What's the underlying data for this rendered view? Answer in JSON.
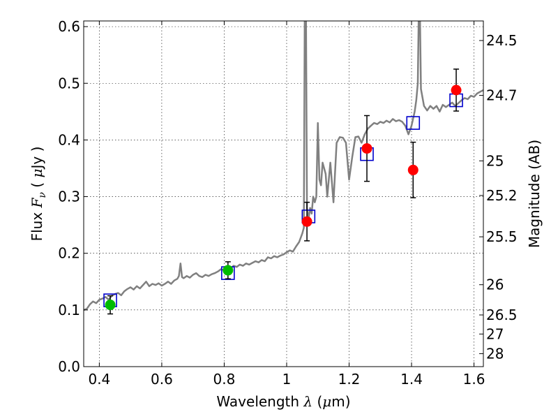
{
  "chart_data": {
    "type": "scatter",
    "xlabel": {
      "pre": "Wavelength  ",
      "sym": "λ",
      "post": " (",
      "mu": "μ",
      "unit": "m)"
    },
    "ylabel": {
      "pre": "Flux  ",
      "sym": "F",
      "sub": "ν",
      "post": "  ( ",
      "mu": "μ",
      "unit": "Jy )"
    },
    "y2label": "Magnitude (AB)",
    "xlim": [
      0.35,
      1.63
    ],
    "ylim": [
      0.0,
      0.61
    ],
    "grid": true,
    "x_ticks": [
      {
        "v": 0.4,
        "label": "0.4"
      },
      {
        "v": 0.6,
        "label": "0.6"
      },
      {
        "v": 0.8,
        "label": "0.8"
      },
      {
        "v": 1.0,
        "label": "1"
      },
      {
        "v": 1.2,
        "label": "1.2"
      },
      {
        "v": 1.4,
        "label": "1.4"
      },
      {
        "v": 1.6,
        "label": "1.6"
      }
    ],
    "y_ticks": [
      {
        "v": 0.0,
        "label": "0.0"
      },
      {
        "v": 0.1,
        "label": "0.1"
      },
      {
        "v": 0.2,
        "label": "0.2"
      },
      {
        "v": 0.3,
        "label": "0.3"
      },
      {
        "v": 0.4,
        "label": "0.4"
      },
      {
        "v": 0.5,
        "label": "0.5"
      },
      {
        "v": 0.6,
        "label": "0.6"
      }
    ],
    "mag_ticks": [
      {
        "mag": 24.5,
        "label": "24.5"
      },
      {
        "mag": 24.7,
        "label": "24.7"
      },
      {
        "mag": 25,
        "label": "25"
      },
      {
        "mag": 25.2,
        "label": "25.2"
      },
      {
        "mag": 25.5,
        "label": "25.5"
      },
      {
        "mag": 26,
        "label": "26"
      },
      {
        "mag": 26.5,
        "label": "26.5"
      },
      {
        "mag": 27,
        "label": "27"
      },
      {
        "mag": 28,
        "label": "28"
      }
    ],
    "series": [
      {
        "style": "line",
        "color": "#808080",
        "points": [
          [
            0.35,
            0.1
          ],
          [
            0.36,
            0.102
          ],
          [
            0.37,
            0.11
          ],
          [
            0.38,
            0.115
          ],
          [
            0.39,
            0.112
          ],
          [
            0.4,
            0.118
          ],
          [
            0.41,
            0.12
          ],
          [
            0.42,
            0.123
          ],
          [
            0.43,
            0.118
          ],
          [
            0.44,
            0.125
          ],
          [
            0.45,
            0.128
          ],
          [
            0.46,
            0.13
          ],
          [
            0.47,
            0.126
          ],
          [
            0.48,
            0.133
          ],
          [
            0.49,
            0.137
          ],
          [
            0.5,
            0.14
          ],
          [
            0.51,
            0.136
          ],
          [
            0.52,
            0.142
          ],
          [
            0.53,
            0.138
          ],
          [
            0.54,
            0.144
          ],
          [
            0.55,
            0.15
          ],
          [
            0.56,
            0.142
          ],
          [
            0.57,
            0.146
          ],
          [
            0.58,
            0.144
          ],
          [
            0.59,
            0.147
          ],
          [
            0.6,
            0.143
          ],
          [
            0.61,
            0.146
          ],
          [
            0.62,
            0.15
          ],
          [
            0.63,
            0.146
          ],
          [
            0.64,
            0.152
          ],
          [
            0.65,
            0.155
          ],
          [
            0.655,
            0.16
          ],
          [
            0.66,
            0.182
          ],
          [
            0.665,
            0.158
          ],
          [
            0.67,
            0.156
          ],
          [
            0.68,
            0.16
          ],
          [
            0.69,
            0.157
          ],
          [
            0.7,
            0.162
          ],
          [
            0.71,
            0.165
          ],
          [
            0.72,
            0.16
          ],
          [
            0.73,
            0.158
          ],
          [
            0.74,
            0.162
          ],
          [
            0.75,
            0.16
          ],
          [
            0.76,
            0.163
          ],
          [
            0.77,
            0.165
          ],
          [
            0.78,
            0.168
          ],
          [
            0.79,
            0.172
          ],
          [
            0.8,
            0.17
          ],
          [
            0.81,
            0.175
          ],
          [
            0.82,
            0.173
          ],
          [
            0.83,
            0.178
          ],
          [
            0.84,
            0.176
          ],
          [
            0.85,
            0.18
          ],
          [
            0.86,
            0.178
          ],
          [
            0.87,
            0.182
          ],
          [
            0.88,
            0.18
          ],
          [
            0.89,
            0.183
          ],
          [
            0.9,
            0.186
          ],
          [
            0.91,
            0.184
          ],
          [
            0.92,
            0.188
          ],
          [
            0.93,
            0.186
          ],
          [
            0.94,
            0.193
          ],
          [
            0.95,
            0.191
          ],
          [
            0.96,
            0.195
          ],
          [
            0.97,
            0.193
          ],
          [
            0.98,
            0.196
          ],
          [
            0.99,
            0.198
          ],
          [
            1.0,
            0.202
          ],
          [
            1.01,
            0.205
          ],
          [
            1.02,
            0.203
          ],
          [
            1.03,
            0.212
          ],
          [
            1.04,
            0.22
          ],
          [
            1.05,
            0.235
          ],
          [
            1.055,
            0.245
          ],
          [
            1.058,
            0.62
          ],
          [
            1.062,
            0.62
          ],
          [
            1.065,
            0.28
          ],
          [
            1.07,
            0.26
          ],
          [
            1.075,
            0.28
          ],
          [
            1.08,
            0.27
          ],
          [
            1.085,
            0.3
          ],
          [
            1.09,
            0.29
          ],
          [
            1.095,
            0.3
          ],
          [
            1.1,
            0.43
          ],
          [
            1.105,
            0.33
          ],
          [
            1.11,
            0.32
          ],
          [
            1.115,
            0.36
          ],
          [
            1.12,
            0.35
          ],
          [
            1.125,
            0.34
          ],
          [
            1.13,
            0.3
          ],
          [
            1.14,
            0.36
          ],
          [
            1.15,
            0.29
          ],
          [
            1.16,
            0.395
          ],
          [
            1.17,
            0.405
          ],
          [
            1.18,
            0.404
          ],
          [
            1.19,
            0.395
          ],
          [
            1.2,
            0.33
          ],
          [
            1.21,
            0.37
          ],
          [
            1.22,
            0.405
          ],
          [
            1.23,
            0.406
          ],
          [
            1.24,
            0.395
          ],
          [
            1.25,
            0.41
          ],
          [
            1.26,
            0.42
          ],
          [
            1.27,
            0.425
          ],
          [
            1.28,
            0.43
          ],
          [
            1.29,
            0.428
          ],
          [
            1.3,
            0.432
          ],
          [
            1.31,
            0.43
          ],
          [
            1.32,
            0.434
          ],
          [
            1.33,
            0.431
          ],
          [
            1.34,
            0.437
          ],
          [
            1.35,
            0.433
          ],
          [
            1.36,
            0.435
          ],
          [
            1.37,
            0.432
          ],
          [
            1.38,
            0.425
          ],
          [
            1.39,
            0.41
          ],
          [
            1.4,
            0.425
          ],
          [
            1.41,
            0.45
          ],
          [
            1.415,
            0.47
          ],
          [
            1.42,
            0.5
          ],
          [
            1.423,
            0.62
          ],
          [
            1.427,
            0.62
          ],
          [
            1.43,
            0.49
          ],
          [
            1.44,
            0.46
          ],
          [
            1.45,
            0.452
          ],
          [
            1.46,
            0.46
          ],
          [
            1.47,
            0.455
          ],
          [
            1.48,
            0.46
          ],
          [
            1.49,
            0.45
          ],
          [
            1.5,
            0.462
          ],
          [
            1.51,
            0.458
          ],
          [
            1.52,
            0.462
          ],
          [
            1.53,
            0.466
          ],
          [
            1.54,
            0.46
          ],
          [
            1.55,
            0.465
          ],
          [
            1.56,
            0.47
          ],
          [
            1.57,
            0.474
          ],
          [
            1.58,
            0.472
          ],
          [
            1.59,
            0.478
          ],
          [
            1.6,
            0.476
          ],
          [
            1.61,
            0.482
          ],
          [
            1.62,
            0.485
          ],
          [
            1.63,
            0.488
          ]
        ]
      },
      {
        "style": "open-square",
        "color": "#0000cc",
        "points": [
          [
            0.435,
            0.117
          ],
          [
            0.812,
            0.165
          ],
          [
            1.07,
            0.265
          ],
          [
            1.257,
            0.375
          ],
          [
            1.405,
            0.43
          ],
          [
            1.543,
            0.47
          ]
        ]
      },
      {
        "style": "filled-circle",
        "color": "#00bb00",
        "points": [
          [
            0.435,
            0.109,
            0.016
          ],
          [
            0.812,
            0.17,
            0.015
          ]
        ]
      },
      {
        "style": "filled-circle",
        "color": "#ff0000",
        "points": [
          [
            1.065,
            0.256,
            0.034
          ],
          [
            1.257,
            0.385,
            0.058
          ],
          [
            1.405,
            0.347,
            0.049
          ],
          [
            1.543,
            0.488,
            0.037
          ]
        ]
      }
    ]
  }
}
